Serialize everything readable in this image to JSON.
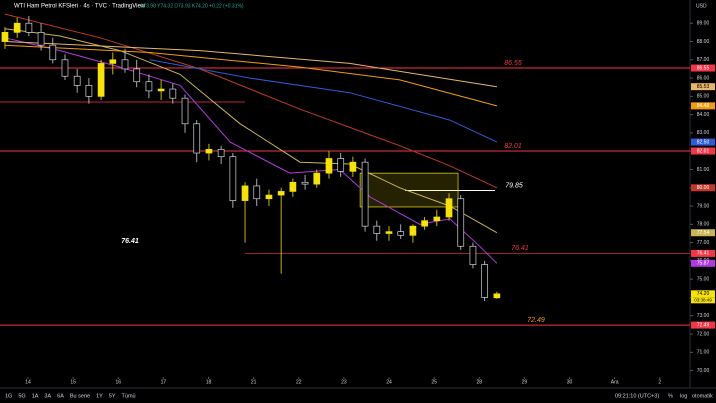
{
  "chart_data": {
    "type": "candlestick",
    "title": "WTI Ham Petrol KFSleri · 4s · TVC · TradingView",
    "ohlc_text": "A73.98 Y74.32 D73.93 K74.20 +0.22 (+0.31%)",
    "currency": "USD",
    "x": [
      -0.51,
      -0.24,
      0.02,
      0.29,
      0.55,
      0.82,
      1.09,
      1.35,
      1.62,
      1.88,
      2.15,
      2.41,
      2.68,
      2.95,
      3.21,
      3.48,
      3.74,
      4.01,
      4.28,
      4.54,
      4.81,
      5.07,
      5.34,
      5.61,
      5.87,
      6.14,
      6.4,
      6.67,
      6.93,
      7.2,
      7.47,
      7.73,
      8.0,
      8.26,
      8.53,
      8.79,
      9.06,
      9.33,
      9.59,
      9.86,
      10.12,
      10.39
    ],
    "open": [
      88.0,
      88.5,
      89.0,
      88.5,
      87.8,
      87.0,
      86.1,
      85.6,
      85.0,
      86.8,
      87.0,
      86.5,
      85.8,
      85.3,
      85.4,
      84.9,
      83.5,
      81.9,
      82.1,
      81.7,
      79.3,
      80.1,
      79.4,
      79.6,
      79.8,
      80.3,
      80.2,
      80.8,
      81.6,
      80.9,
      81.4,
      77.9,
      77.5,
      77.6,
      77.4,
      77.9,
      78.2,
      78.4,
      79.4,
      76.8,
      75.8,
      73.98
    ],
    "high": [
      88.8,
      89.3,
      89.4,
      89.0,
      88.2,
      87.3,
      86.5,
      86.0,
      87.0,
      87.4,
      87.6,
      87.0,
      86.2,
      85.9,
      85.7,
      85.1,
      83.7,
      82.4,
      82.3,
      81.9,
      80.3,
      80.5,
      79.9,
      80.0,
      80.5,
      80.7,
      81.0,
      82.0,
      81.9,
      81.7,
      81.6,
      78.2,
      77.9,
      78.0,
      78.0,
      78.4,
      78.8,
      79.7,
      79.6,
      77.0,
      76.0,
      74.32
    ],
    "low": [
      87.6,
      88.2,
      88.3,
      87.5,
      86.8,
      85.9,
      85.2,
      84.6,
      84.8,
      86.2,
      86.3,
      85.5,
      84.9,
      84.8,
      84.6,
      83.0,
      81.4,
      81.5,
      81.3,
      78.9,
      77.0,
      79.0,
      79.0,
      75.3,
      79.5,
      79.9,
      80.0,
      80.5,
      80.6,
      80.6,
      77.6,
      77.1,
      77.1,
      77.2,
      77.0,
      77.7,
      77.9,
      78.2,
      76.6,
      75.6,
      73.8,
      73.93
    ],
    "close": [
      88.5,
      89.0,
      88.5,
      87.8,
      87.0,
      86.1,
      85.6,
      85.0,
      86.8,
      87.0,
      86.5,
      85.8,
      85.3,
      85.4,
      84.9,
      83.5,
      81.9,
      82.1,
      81.7,
      79.3,
      80.1,
      79.4,
      79.6,
      79.8,
      80.3,
      80.2,
      80.8,
      81.6,
      80.9,
      81.4,
      77.9,
      77.5,
      77.6,
      77.4,
      77.9,
      78.2,
      78.4,
      79.4,
      76.8,
      75.8,
      74.0,
      74.2
    ],
    "up_color": "#f5e20a",
    "down_color": "#000000",
    "series": [
      {
        "name": "MA fast",
        "color": "#b03ae0",
        "x": [
          -0.51,
          0.71,
          2.04,
          3.37,
          4.48,
          5.8,
          6.91,
          7.58,
          8.68,
          9.35,
          10.01,
          10.39
        ],
        "values": [
          88.2,
          87.5,
          86.6,
          85.6,
          82.5,
          80.8,
          81.0,
          79.5,
          78.0,
          78.3,
          76.8,
          75.87
        ]
      },
      {
        "name": "MA mid",
        "color": "#c9b458",
        "x": [
          -0.51,
          0.71,
          2.04,
          3.37,
          4.7,
          6.03,
          7.13,
          8.24,
          9.35,
          10.39
        ],
        "values": [
          88.7,
          88.3,
          87.5,
          86.2,
          83.5,
          81.4,
          81.3,
          80.0,
          79.0,
          77.54
        ]
      },
      {
        "name": "MA slow",
        "color": "#c0392b",
        "x": [
          -0.51,
          1.6,
          3.81,
          6.03,
          8.24,
          9.35,
          10.39
        ],
        "values": [
          89.5,
          88.2,
          86.5,
          84.3,
          82.3,
          81.2,
          80.0
        ]
      },
      {
        "name": "MA 100",
        "color": "#2f5bd6",
        "x": [
          2.7,
          4.92,
          7.13,
          9.35,
          10.39
        ],
        "values": [
          87.0,
          86.0,
          85.2,
          83.7,
          82.5
        ]
      },
      {
        "name": "MA 200",
        "color": "#f39c12",
        "x": [
          -0.51,
          2.7,
          6.03,
          8.24,
          10.39
        ],
        "values": [
          87.8,
          87.4,
          86.6,
          85.9,
          84.48
        ]
      },
      {
        "name": "MA 200b",
        "color": "#e8b66b",
        "x": [
          -0.51,
          3.81,
          7.13,
          10.39
        ],
        "values": [
          88.0,
          87.5,
          86.8,
          85.53
        ]
      }
    ],
    "levels": [
      {
        "value": 86.55,
        "color": "#f23645"
      },
      {
        "value": 82.01,
        "color": "#f23645"
      },
      {
        "value": 76.41,
        "color": "#f23645"
      },
      {
        "value": 72.49,
        "color": "#f23645"
      },
      {
        "value": 84.69,
        "color": "#f23645"
      },
      {
        "value": 79.85,
        "color": "#ffffff"
      }
    ],
    "box": {
      "from": [
        7.36,
        80.8
      ],
      "to": [
        9.53,
        78.95
      ],
      "color": "#f5e20a"
    },
    "badges": [
      {
        "value": 86.55,
        "label": "86.55",
        "color": "#f23645"
      },
      {
        "value": 85.53,
        "label": "85.53",
        "color": "#e8b66b"
      },
      {
        "value": 84.48,
        "label": "84.48",
        "color": "#f39c12"
      },
      {
        "value": 82.5,
        "label": "82.50",
        "color": "#2f5bd6"
      },
      {
        "value": 82.01,
        "label": "82.01",
        "color": "#f23645"
      },
      {
        "value": 80.0,
        "label": "80.00",
        "color": "#c0392b"
      },
      {
        "value": 77.54,
        "label": "77.54",
        "color": "#c9b458"
      },
      {
        "value": 76.41,
        "label": "76.41",
        "color": "#f23645"
      },
      {
        "value": 75.87,
        "label": "75.87",
        "color": "#b03ae0"
      },
      {
        "value": 74.2,
        "label": "74.20",
        "color": "#f5e20a"
      },
      {
        "value": 72.49,
        "label": "72.49",
        "color": "#f23645"
      }
    ],
    "countdown": "03:38:49",
    "xlim": [
      -0.62,
      14.67
    ],
    "ylim": [
      69.65,
      90.27
    ],
    "xticks": [
      {
        "value": 0,
        "label": "14"
      },
      {
        "value": 1,
        "label": "15"
      },
      {
        "value": 2,
        "label": "16"
      },
      {
        "value": 3,
        "label": "17"
      },
      {
        "value": 4,
        "label": "18"
      },
      {
        "value": 5,
        "label": "21"
      },
      {
        "value": 6,
        "label": "22"
      },
      {
        "value": 7,
        "label": "23"
      },
      {
        "value": 8,
        "label": "24"
      },
      {
        "value": 9,
        "label": "25"
      },
      {
        "value": 10,
        "label": "28"
      },
      {
        "value": 11,
        "label": "29"
      },
      {
        "value": 12,
        "label": "30"
      },
      {
        "value": 13,
        "label": "Ara"
      },
      {
        "value": 14,
        "label": "2"
      }
    ],
    "yticks": [
      {
        "value": 70,
        "label": "70.00"
      },
      {
        "value": 71,
        "label": "71.00"
      },
      {
        "value": 72,
        "label": "72.00"
      },
      {
        "value": 73,
        "label": "73.00"
      },
      {
        "value": 74,
        "label": "74.00"
      },
      {
        "value": 75,
        "label": "75.00"
      },
      {
        "value": 76,
        "label": "76.00"
      },
      {
        "value": 77,
        "label": "77.00"
      },
      {
        "value": 78,
        "label": "78.00"
      },
      {
        "value": 79,
        "label": "79.00"
      },
      {
        "value": 80,
        "label": "80.00"
      },
      {
        "value": 81,
        "label": "81.00"
      },
      {
        "value": 82,
        "label": "82.00"
      },
      {
        "value": 83,
        "label": "83.00"
      },
      {
        "value": 84,
        "label": "84.00"
      },
      {
        "value": 85,
        "label": "85.00"
      },
      {
        "value": 86,
        "label": "86.00"
      },
      {
        "value": 87,
        "label": "87.00"
      },
      {
        "value": 88,
        "label": "88.00"
      },
      {
        "value": 89,
        "label": "89.00"
      }
    ]
  },
  "toolbar": {
    "ranges": [
      "1G",
      "5G",
      "1A",
      "3A",
      "6A",
      "Bu sene",
      "1Y",
      "5Y",
      "Tümü"
    ],
    "time": "09:21:10 (UTC+3)",
    "options": [
      "%",
      "log",
      "otomatik"
    ]
  }
}
